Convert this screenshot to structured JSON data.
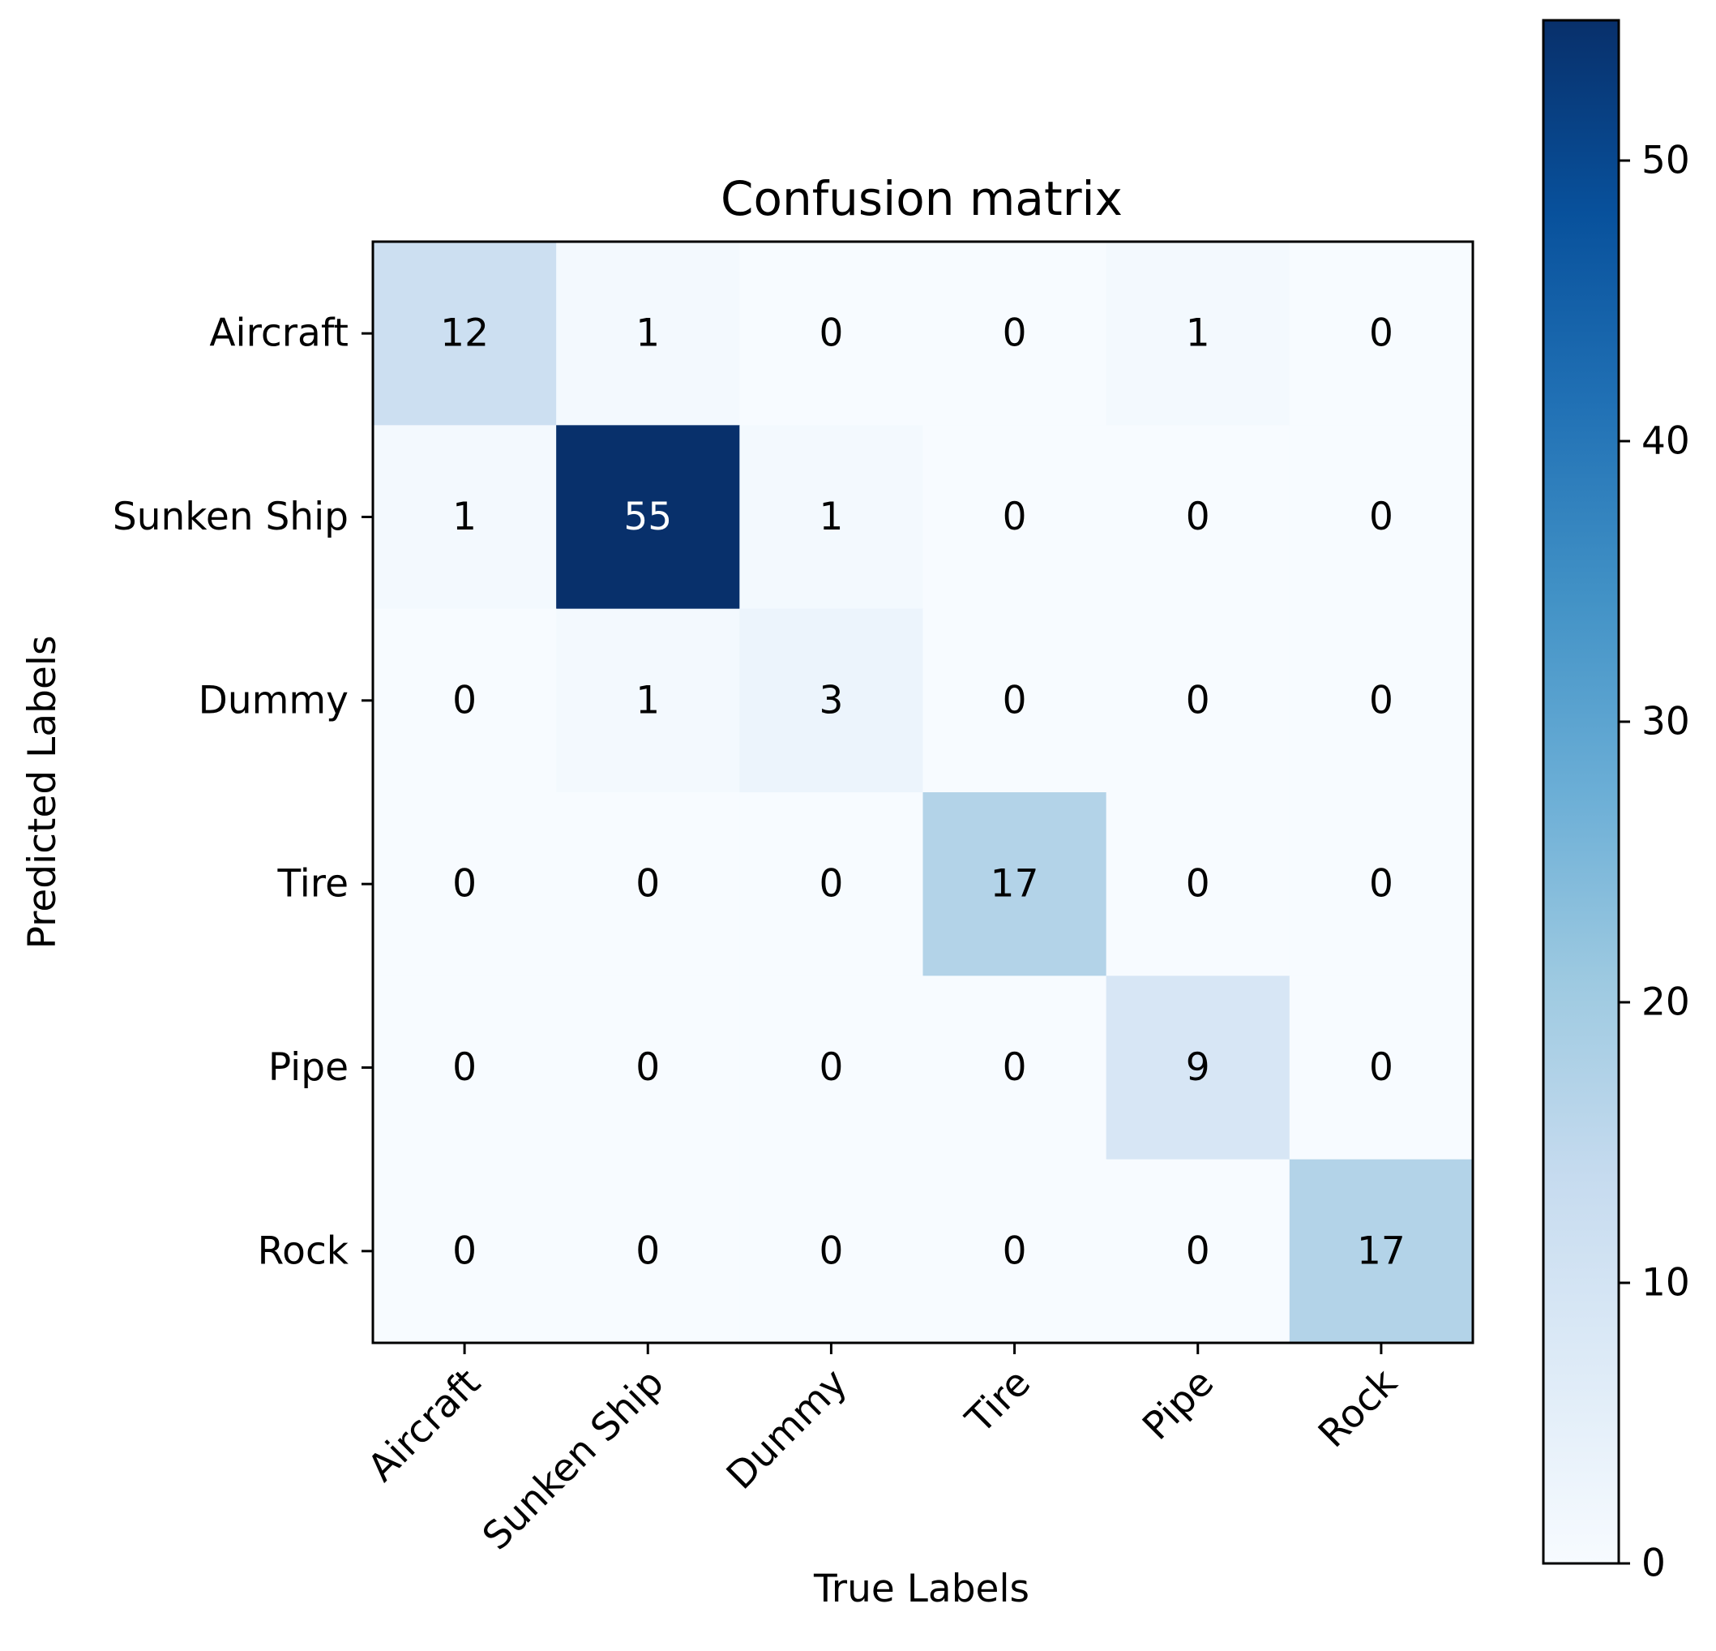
{
  "chart_data": {
    "type": "heatmap",
    "title": "Confusion matrix",
    "xlabel": "True Labels",
    "ylabel": "Predicted Labels",
    "x_categories": [
      "Aircraft",
      "Sunken Ship",
      "Dummy",
      "Tire",
      "Pipe",
      "Rock"
    ],
    "y_categories": [
      "Aircraft",
      "Sunken Ship",
      "Dummy",
      "Tire",
      "Pipe",
      "Rock"
    ],
    "matrix": [
      [
        12,
        1,
        0,
        0,
        1,
        0
      ],
      [
        1,
        55,
        1,
        0,
        0,
        0
      ],
      [
        0,
        1,
        3,
        0,
        0,
        0
      ],
      [
        0,
        0,
        0,
        17,
        0,
        0
      ],
      [
        0,
        0,
        0,
        0,
        9,
        0
      ],
      [
        0,
        0,
        0,
        0,
        0,
        17
      ]
    ],
    "colormap": "Blues",
    "colorbar": {
      "range": [
        0,
        55
      ],
      "ticks": [
        0,
        10,
        20,
        30,
        40,
        50
      ]
    },
    "x_tick_rotation_deg": 45,
    "grid": false
  },
  "colors": {
    "axis": "#000000",
    "text_dark": "#000000",
    "text_light": "#ffffff",
    "background": "#ffffff"
  }
}
